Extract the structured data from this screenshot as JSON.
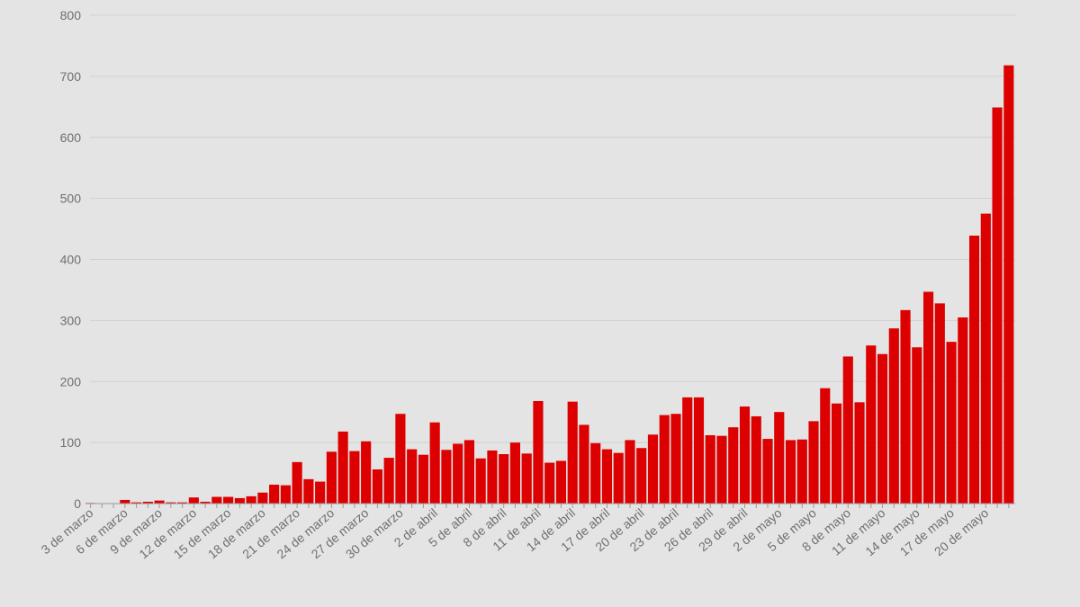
{
  "chart_data": {
    "type": "bar",
    "title": "",
    "xlabel": "",
    "ylabel": "",
    "ylim": [
      0,
      800
    ],
    "yticks": [
      0,
      100,
      200,
      300,
      400,
      500,
      600,
      700,
      800
    ],
    "grid": true,
    "bar_color": "#dd0000",
    "categories": [
      "3 de marzo",
      "4 de marzo",
      "5 de marzo",
      "6 de marzo",
      "7 de marzo",
      "8 de marzo",
      "9 de marzo",
      "10 de marzo",
      "11 de marzo",
      "12 de marzo",
      "13 de marzo",
      "14 de marzo",
      "15 de marzo",
      "16 de marzo",
      "17 de marzo",
      "18 de marzo",
      "19 de marzo",
      "20 de marzo",
      "21 de marzo",
      "22 de marzo",
      "23 de marzo",
      "24 de marzo",
      "25 de marzo",
      "26 de marzo",
      "27 de marzo",
      "28 de marzo",
      "29 de marzo",
      "30 de marzo",
      "31 de marzo",
      "1 de abril",
      "2 de abril",
      "3 de abril",
      "4 de abril",
      "5 de abril",
      "6 de abril",
      "7 de abril",
      "8 de abril",
      "9 de abril",
      "10 de abril",
      "11 de abril",
      "12 de abril",
      "13 de abril",
      "14 de abril",
      "15 de abril",
      "16 de abril",
      "17 de abril",
      "18 de abril",
      "19 de abril",
      "20 de abril",
      "21 de abril",
      "22 de abril",
      "23 de abril",
      "24 de abril",
      "25 de abril",
      "26 de abril",
      "27 de abril",
      "28 de abril",
      "29 de abril",
      "30 de abril",
      "1 de mayo",
      "2 de mayo",
      "3 de mayo",
      "4 de mayo",
      "5 de mayo",
      "6 de mayo",
      "7 de mayo",
      "8 de mayo",
      "9 de mayo",
      "10 de mayo",
      "11 de mayo",
      "12 de mayo",
      "13 de mayo",
      "14 de mayo",
      "15 de mayo",
      "16 de mayo",
      "17 de mayo",
      "18 de mayo",
      "19 de mayo",
      "20 de mayo",
      "21 de mayo",
      "22 de mayo"
    ],
    "values": [
      1,
      0,
      0,
      6,
      2,
      3,
      5,
      2,
      2,
      10,
      3,
      11,
      11,
      9,
      12,
      18,
      31,
      30,
      68,
      40,
      36,
      85,
      118,
      86,
      102,
      56,
      75,
      147,
      89,
      80,
      133,
      88,
      98,
      104,
      74,
      87,
      81,
      100,
      82,
      168,
      67,
      70,
      167,
      129,
      99,
      89,
      83,
      104,
      91,
      113,
      145,
      147,
      174,
      174,
      112,
      111,
      125,
      159,
      143,
      106,
      150,
      104,
      105,
      135,
      189,
      164,
      241,
      166,
      259,
      245,
      287,
      317,
      256,
      347,
      328,
      265,
      305,
      439,
      475,
      649,
      718
    ],
    "xtick_labels": [
      "3 de marzo",
      "6 de marzo",
      "9 de marzo",
      "12 de marzo",
      "15 de marzo",
      "18 de marzo",
      "21 de marzo",
      "24 de marzo",
      "27 de marzo",
      "30 de marzo",
      "2 de abril",
      "5 de abril",
      "8 de abril",
      "11 de abril",
      "14 de abril",
      "17 de abril",
      "20 de abril",
      "23 de abril",
      "26 de abril",
      "29 de abril",
      "2 de mayo",
      "5 de mayo",
      "8 de mayo",
      "11 de mayo",
      "14 de mayo",
      "17 de mayo",
      "20 de mayo"
    ],
    "xtick_every": 3
  }
}
